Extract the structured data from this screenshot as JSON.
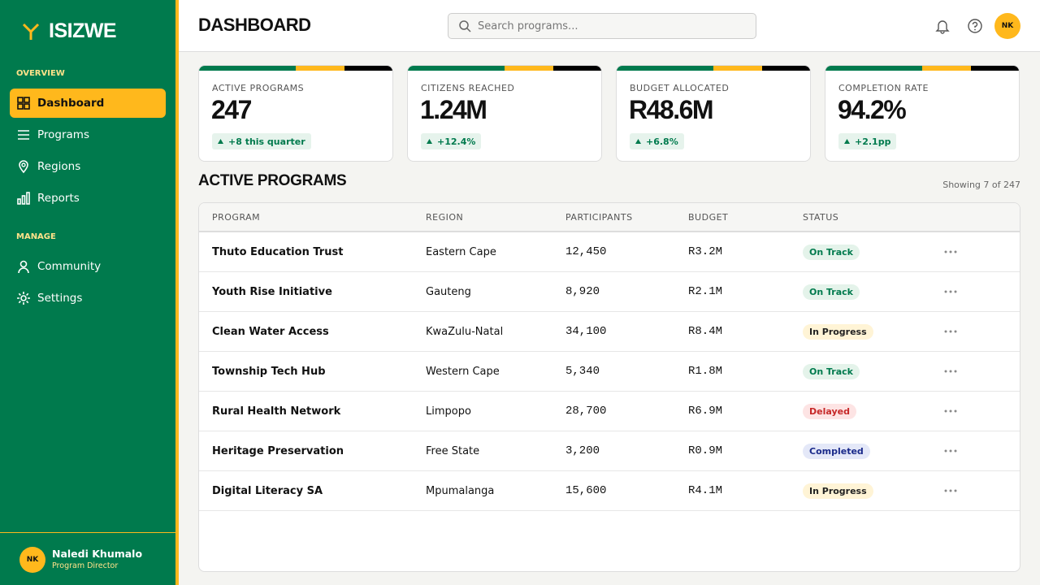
{
  "sidebar": {
    "brand": "ISIZWE",
    "sections": [
      {
        "title": "OVERVIEW",
        "items": [
          "Dashboard",
          "Programs",
          "Regions",
          "Reports"
        ]
      },
      {
        "title": "MANAGE",
        "items": [
          "Community",
          "Settings"
        ]
      }
    ],
    "user": {
      "initials": "NK",
      "name": "Naledi Khumalo",
      "role": "Program Director"
    }
  },
  "header": {
    "title": "DASHBOARD",
    "search_placeholder": "Search programs...",
    "avatar": "NK"
  },
  "stats": [
    {
      "label": "ACTIVE PROGRAMS",
      "value": "247",
      "change": "+8 this quarter"
    },
    {
      "label": "CITIZENS REACHED",
      "value": "1.24M",
      "change": "+12.4%"
    },
    {
      "label": "BUDGET ALLOCATED",
      "value": "R48.6M",
      "change": "+6.8%"
    },
    {
      "label": "COMPLETION RATE",
      "value": "94.2%",
      "change": "+2.1pp"
    }
  ],
  "table": {
    "title": "ACTIVE PROGRAMS",
    "showing": "Showing 7 of 247",
    "columns": [
      "PROGRAM",
      "REGION",
      "PARTICIPANTS",
      "BUDGET",
      "STATUS"
    ],
    "rows": [
      [
        "Thuto Education Trust",
        "Eastern Cape",
        "12,450",
        "R3.2M",
        "On Track"
      ],
      [
        "Youth Rise Initiative",
        "Gauteng",
        "8,920",
        "R2.1M",
        "On Track"
      ],
      [
        "Clean Water Access",
        "KwaZulu-Natal",
        "34,100",
        "R8.4M",
        "In Progress"
      ],
      [
        "Township Tech Hub",
        "Western Cape",
        "5,340",
        "R1.8M",
        "On Track"
      ],
      [
        "Rural Health Network",
        "Limpopo",
        "28,700",
        "R6.9M",
        "Delayed"
      ],
      [
        "Heritage Preservation",
        "Free State",
        "3,200",
        "R0.9M",
        "Completed"
      ],
      [
        "Digital Literacy SA",
        "Mpumalanga",
        "15,600",
        "R4.1M",
        "In Progress"
      ]
    ]
  }
}
